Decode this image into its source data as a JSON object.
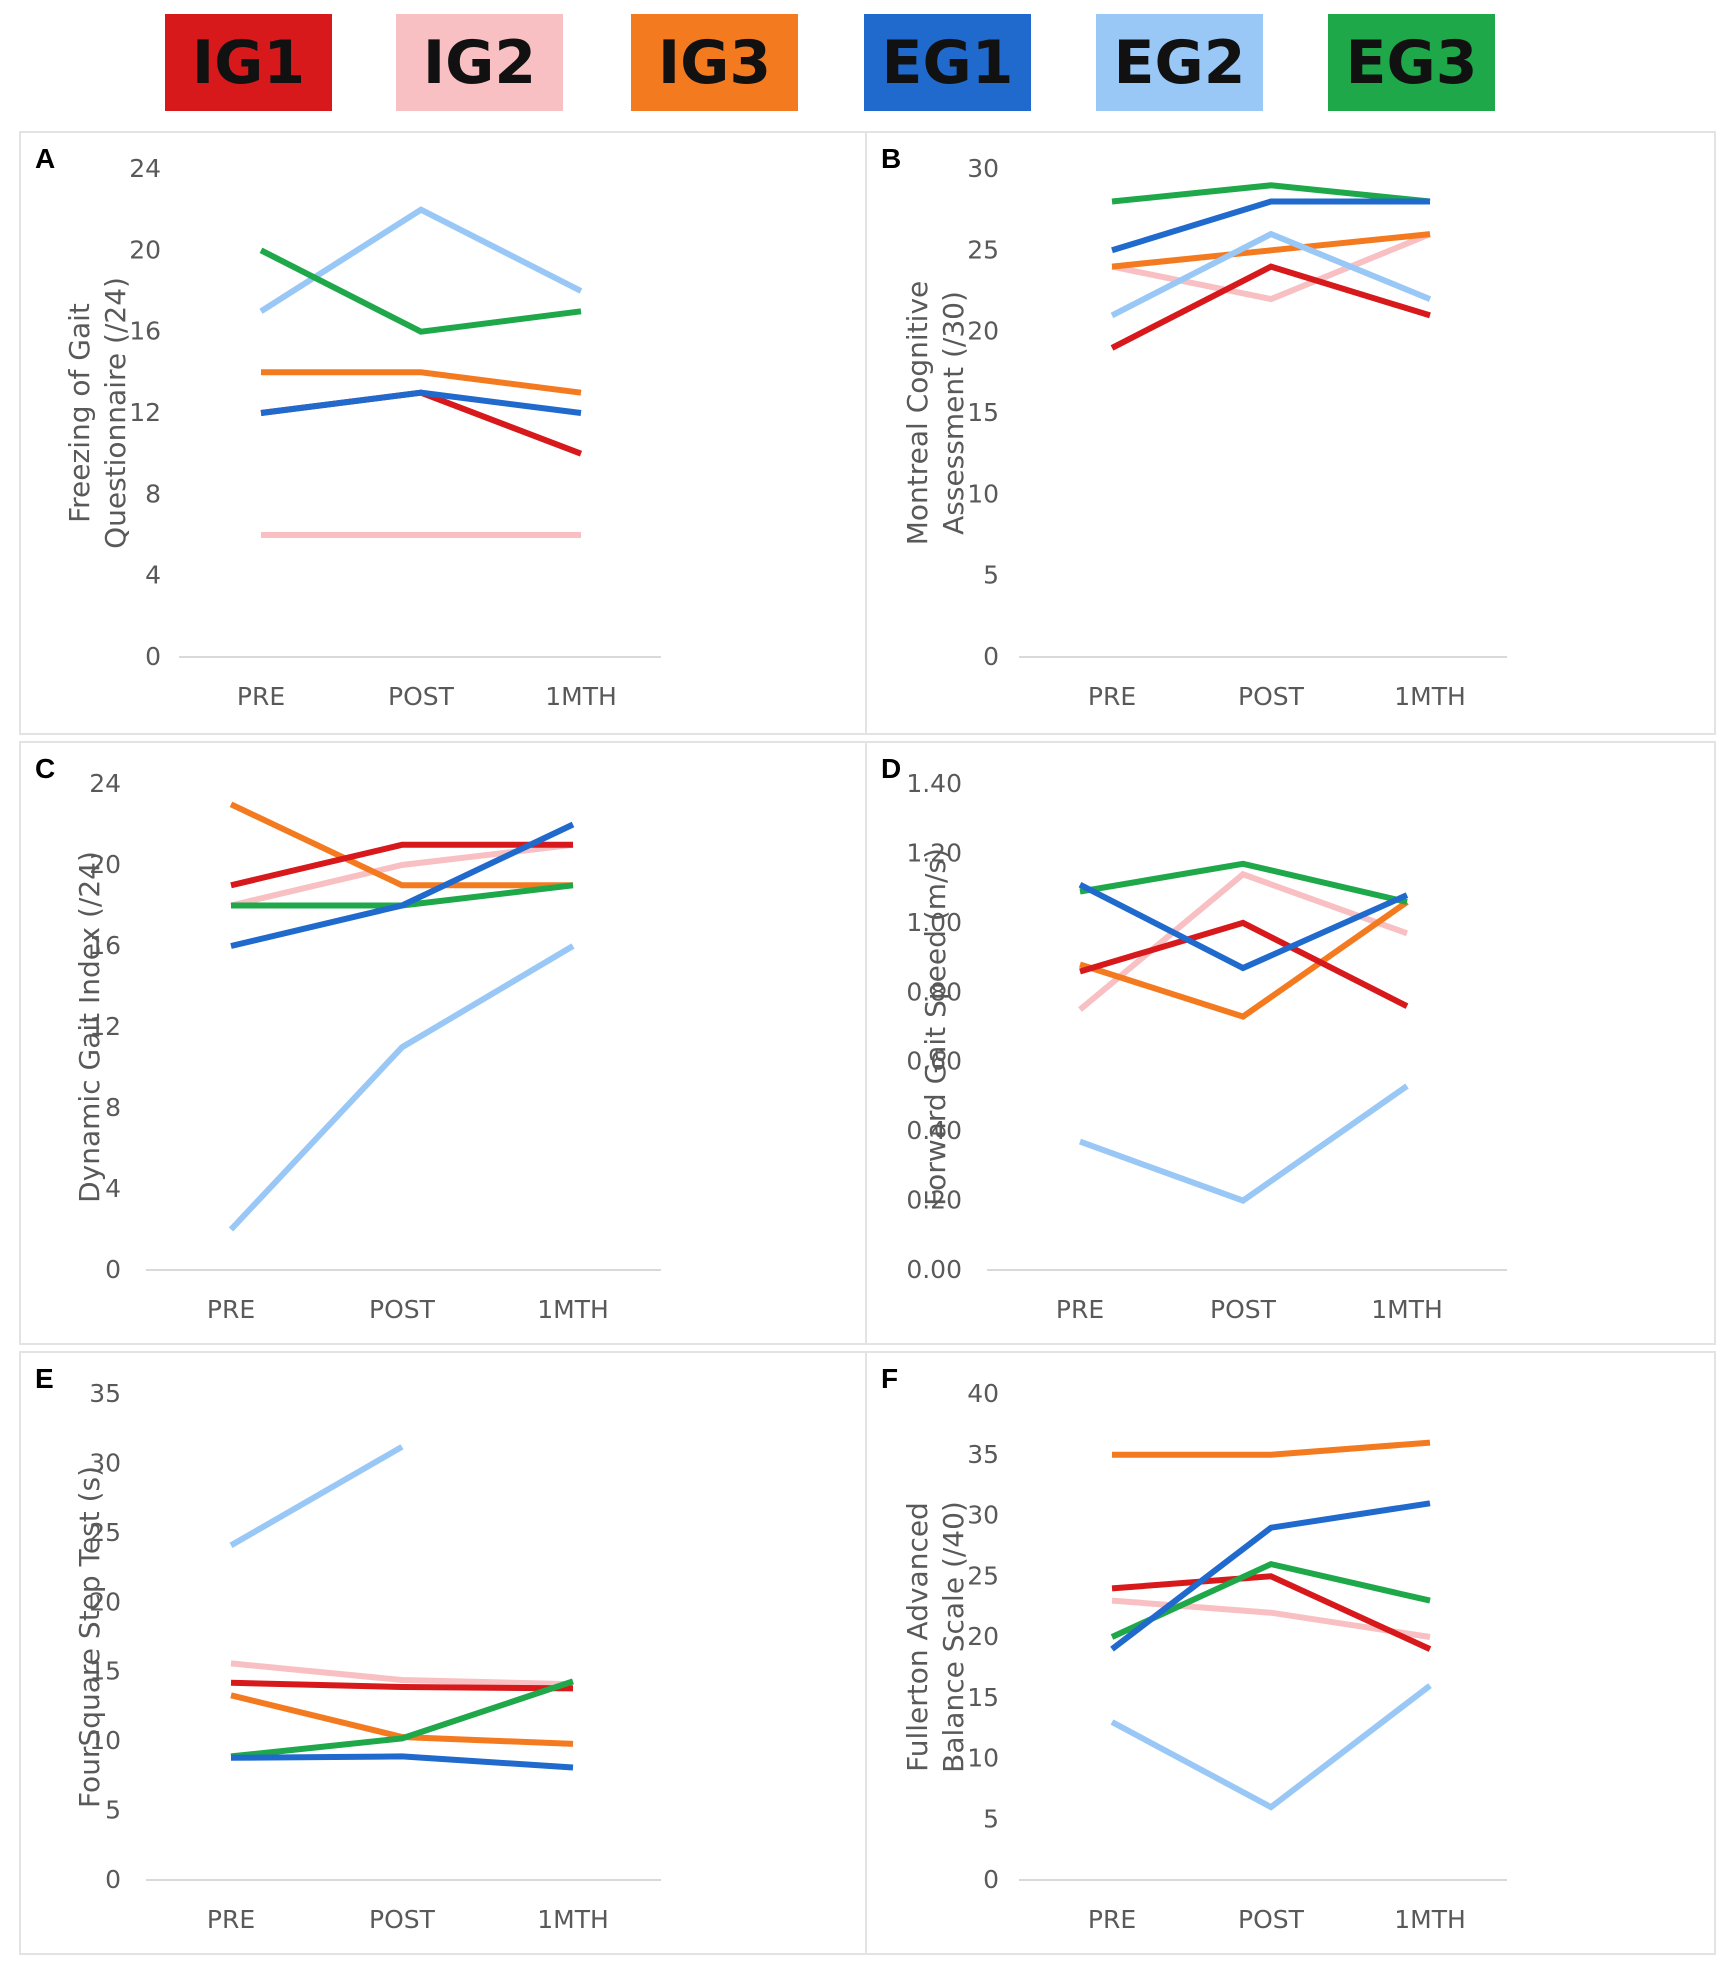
{
  "legend": [
    {
      "label": "IG1",
      "color": "#D7191C"
    },
    {
      "label": "IG2",
      "color": "#F8C0C2"
    },
    {
      "label": "IG3",
      "color": "#F47A20"
    },
    {
      "label": "EG1",
      "color": "#1F6ACC"
    },
    {
      "label": "EG2",
      "color": "#99C8F6"
    },
    {
      "label": "EG3",
      "color": "#1EA84A"
    }
  ],
  "chart_data": [
    {
      "panel": "A",
      "type": "line",
      "ylabel": [
        "Freezing of Gait",
        "Questionnaire (/24)"
      ],
      "categories": [
        "PRE",
        "POST",
        "1MTH"
      ],
      "ylim": [
        0,
        24
      ],
      "yticks": [
        "0",
        "4",
        "8",
        "12",
        "16",
        "20",
        "24"
      ],
      "series": [
        {
          "name": "IG1",
          "values": [
            12,
            13,
            10
          ]
        },
        {
          "name": "IG2",
          "values": [
            6,
            6,
            6
          ]
        },
        {
          "name": "IG3",
          "values": [
            14,
            14,
            13
          ]
        },
        {
          "name": "EG1",
          "values": [
            12,
            13,
            12
          ]
        },
        {
          "name": "EG2",
          "values": [
            17,
            22,
            18
          ]
        },
        {
          "name": "EG3",
          "values": [
            20,
            16,
            17
          ]
        }
      ]
    },
    {
      "panel": "B",
      "type": "line",
      "ylabel": [
        "Montreal Cognitive",
        "Assessment (/30)"
      ],
      "categories": [
        "PRE",
        "POST",
        "1MTH"
      ],
      "ylim": [
        0,
        30
      ],
      "yticks": [
        "0",
        "5",
        "10",
        "15",
        "20",
        "25",
        "30"
      ],
      "series": [
        {
          "name": "IG1",
          "values": [
            19,
            24,
            21
          ]
        },
        {
          "name": "IG2",
          "values": [
            24,
            22,
            26
          ]
        },
        {
          "name": "IG3",
          "values": [
            24,
            25,
            26
          ]
        },
        {
          "name": "EG1",
          "values": [
            25,
            28,
            28
          ]
        },
        {
          "name": "EG2",
          "values": [
            21,
            26,
            22
          ]
        },
        {
          "name": "EG3",
          "values": [
            28,
            29,
            28
          ]
        }
      ]
    },
    {
      "panel": "C",
      "type": "line",
      "ylabel": [
        "Dynamic Gait Index (/24)"
      ],
      "categories": [
        "PRE",
        "POST",
        "1MTH"
      ],
      "ylim": [
        0,
        24
      ],
      "yticks": [
        "0",
        "4",
        "8",
        "12",
        "16",
        "20",
        "24"
      ],
      "series": [
        {
          "name": "IG1",
          "values": [
            19,
            21,
            21
          ]
        },
        {
          "name": "IG2",
          "values": [
            18,
            20,
            21
          ]
        },
        {
          "name": "IG3",
          "values": [
            23,
            19,
            19
          ]
        },
        {
          "name": "EG1",
          "values": [
            16,
            18,
            22
          ]
        },
        {
          "name": "EG2",
          "values": [
            2,
            11,
            16
          ]
        },
        {
          "name": "EG3",
          "values": [
            18,
            18,
            19
          ]
        }
      ]
    },
    {
      "panel": "D",
      "type": "line",
      "ylabel": [
        "Forward Gait Speed (m/s)"
      ],
      "categories": [
        "PRE",
        "POST",
        "1MTH"
      ],
      "ylim": [
        0,
        1.4
      ],
      "yticks": [
        "0.00",
        "0.20",
        "0.40",
        "0.60",
        "0.80",
        "1.00",
        "1.20",
        "1.40"
      ],
      "series": [
        {
          "name": "IG1",
          "values": [
            0.86,
            1.0,
            0.76
          ]
        },
        {
          "name": "IG2",
          "values": [
            0.75,
            1.14,
            0.97
          ]
        },
        {
          "name": "IG3",
          "values": [
            0.88,
            0.73,
            1.06
          ]
        },
        {
          "name": "EG1",
          "values": [
            1.11,
            0.87,
            1.08
          ]
        },
        {
          "name": "EG2",
          "values": [
            0.37,
            0.2,
            0.53
          ]
        },
        {
          "name": "EG3",
          "values": [
            1.09,
            1.17,
            1.06
          ]
        }
      ]
    },
    {
      "panel": "E",
      "type": "line",
      "ylabel": [
        "FourSquare Step Test (s)"
      ],
      "categories": [
        "PRE",
        "POST",
        "1MTH"
      ],
      "ylim": [
        0,
        35
      ],
      "yticks": [
        "0",
        "5",
        "10",
        "15",
        "20",
        "25",
        "30",
        "35"
      ],
      "series": [
        {
          "name": "IG1",
          "values": [
            14.2,
            13.9,
            13.8
          ]
        },
        {
          "name": "IG2",
          "values": [
            15.6,
            14.4,
            14.1
          ]
        },
        {
          "name": "IG3",
          "values": [
            13.3,
            10.3,
            9.8
          ]
        },
        {
          "name": "EG1",
          "values": [
            8.8,
            8.9,
            8.1
          ]
        },
        {
          "name": "EG2",
          "values": [
            24.1,
            31.2,
            null
          ]
        },
        {
          "name": "EG3",
          "values": [
            8.9,
            10.2,
            14.3
          ]
        }
      ]
    },
    {
      "panel": "F",
      "type": "line",
      "ylabel": [
        "Fullerton Advanced",
        "Balance Scale (/40)"
      ],
      "categories": [
        "PRE",
        "POST",
        "1MTH"
      ],
      "ylim": [
        0,
        40
      ],
      "yticks": [
        "0",
        "5",
        "10",
        "15",
        "20",
        "25",
        "30",
        "35",
        "40"
      ],
      "series": [
        {
          "name": "IG1",
          "values": [
            24,
            25,
            19
          ]
        },
        {
          "name": "IG2",
          "values": [
            23,
            22,
            20
          ]
        },
        {
          "name": "IG3",
          "values": [
            35,
            35,
            36
          ]
        },
        {
          "name": "EG1",
          "values": [
            19,
            29,
            31
          ]
        },
        {
          "name": "EG2",
          "values": [
            13,
            6,
            16
          ]
        },
        {
          "name": "EG3",
          "values": [
            20,
            26,
            23
          ]
        }
      ]
    }
  ]
}
